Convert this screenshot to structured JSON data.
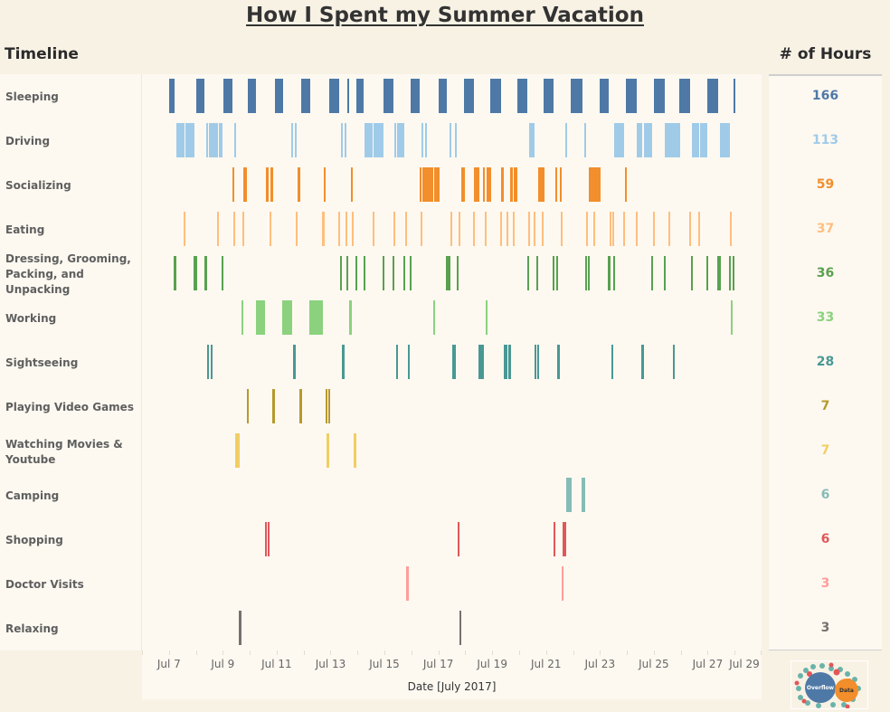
{
  "title": "How I Spent my Summer Vacation",
  "headers": {
    "timeline": "Timeline",
    "hours": "# of Hours"
  },
  "logo": {
    "text_left": "Overflow",
    "text_right": "Data"
  },
  "chart_data": {
    "type": "gantt",
    "title": "How I Spent my Summer Vacation",
    "xlabel": "Date [July 2017]",
    "xlim": [
      "07-06 00:00",
      "07-29 00:00"
    ],
    "x_ticks": [
      "Jul 7",
      "Jul 9",
      "Jul 11",
      "Jul 13",
      "Jul 15",
      "Jul 17",
      "Jul 19",
      "Jul 21",
      "Jul 23",
      "Jul 25",
      "Jul 27",
      "Jul 29"
    ],
    "grid": false,
    "rows": [
      {
        "name": "Sleeping",
        "hours": "166",
        "color": "#4e79a7",
        "bars": [
          [
            "07-07 00:15",
            "07-07 05:00"
          ],
          [
            "07-08 00:15",
            "07-08 07:40"
          ],
          [
            "07-09 00:30",
            "07-09 08:40"
          ],
          [
            "07-09 22:20",
            "07-10 05:30"
          ],
          [
            "07-10 22:20",
            "07-11 05:45"
          ],
          [
            "07-11 21:50",
            "07-12 05:45"
          ],
          [
            "07-12 22:50",
            "07-13 07:40"
          ],
          [
            "07-13 14:55",
            "07-13 16:35"
          ],
          [
            "07-13 23:00",
            "07-14 05:15"
          ],
          [
            "07-14 23:00",
            "07-15 07:55"
          ],
          [
            "07-15 23:15",
            "07-16 07:25"
          ],
          [
            "07-17 00:15",
            "07-17 07:25"
          ],
          [
            "07-17 22:50",
            "07-18 07:40"
          ],
          [
            "07-18 22:05",
            "07-19 07:40"
          ],
          [
            "07-19 22:20",
            "07-20 07:10"
          ],
          [
            "07-20 21:35",
            "07-21 06:30"
          ],
          [
            "07-21 21:50",
            "07-22 08:10"
          ],
          [
            "07-22 23:30",
            "07-23 07:40"
          ],
          [
            "07-23 23:00",
            "07-24 08:40"
          ],
          [
            "07-25 00:00",
            "07-25 09:35"
          ],
          [
            "07-25 22:35",
            "07-26 08:10"
          ],
          [
            "07-26 23:30",
            "07-27 09:05"
          ],
          [
            "07-27 22:50",
            "07-28 00:30"
          ]
        ]
      },
      {
        "name": "Driving",
        "hours": "113",
        "color": "#a0cbe8",
        "bars": [
          [
            "07-07 06:45",
            "07-07 13:55"
          ],
          [
            "07-07 14:40",
            "07-07 22:50"
          ],
          [
            "07-08 09:05",
            "07-08 10:50"
          ],
          [
            "07-08 11:30",
            "07-08 19:40"
          ],
          [
            "07-08 20:25",
            "07-08 23:45"
          ],
          [
            "07-09 10:05",
            "07-09 11:45"
          ],
          [
            "07-11 12:55",
            "07-11 14:40"
          ],
          [
            "07-11 16:05",
            "07-11 17:45"
          ],
          [
            "07-13 09:20",
            "07-13 10:50"
          ],
          [
            "07-13 12:30",
            "07-13 14:10"
          ],
          [
            "07-14 06:15",
            "07-14 13:25"
          ],
          [
            "07-14 14:10",
            "07-14 23:00"
          ],
          [
            "07-15 08:55",
            "07-15 10:20"
          ],
          [
            "07-15 11:15",
            "07-15 17:30"
          ],
          [
            "07-16 08:55",
            "07-16 10:35"
          ],
          [
            "07-16 12:15",
            "07-16 13:40"
          ],
          [
            "07-17 09:50",
            "07-17 11:30"
          ],
          [
            "07-17 14:40",
            "07-17 16:20"
          ],
          [
            "07-20 08:40",
            "07-20 13:25"
          ],
          [
            "07-21 17:00",
            "07-21 18:30"
          ],
          [
            "07-22 09:50",
            "07-22 11:30"
          ],
          [
            "07-23 12:30",
            "07-23 21:20"
          ],
          [
            "07-24 08:40",
            "07-24 13:25"
          ],
          [
            "07-24 15:05",
            "07-24 22:20"
          ],
          [
            "07-25 09:35",
            "07-25 23:15"
          ],
          [
            "07-26 09:50",
            "07-26 16:05"
          ],
          [
            "07-26 17:00",
            "07-26 23:30"
          ],
          [
            "07-27 10:50",
            "07-27 19:40"
          ]
        ]
      },
      {
        "name": "Socializing",
        "hours": "59",
        "color": "#f28e2b",
        "bars": [
          [
            "07-09 08:40",
            "07-09 10:05"
          ],
          [
            "07-09 18:15",
            "07-09 21:20"
          ],
          [
            "07-10 14:25",
            "07-10 16:50"
          ],
          [
            "07-10 18:30",
            "07-10 20:55"
          ],
          [
            "07-11 18:30",
            "07-11 20:55"
          ],
          [
            "07-12 18:00",
            "07-12 19:25"
          ],
          [
            "07-13 18:00",
            "07-13 19:40"
          ],
          [
            "07-16 07:25",
            "07-16 08:55"
          ],
          [
            "07-16 09:50",
            "07-16 19:25"
          ],
          [
            "07-16 20:10",
            "07-17 00:55"
          ],
          [
            "07-17 20:25",
            "07-17 23:30"
          ],
          [
            "07-18 07:25",
            "07-18 12:30"
          ],
          [
            "07-18 15:35",
            "07-18 17:15"
          ],
          [
            "07-18 18:55",
            "07-18 22:50"
          ],
          [
            "07-19 07:40",
            "07-19 10:05"
          ],
          [
            "07-19 15:50",
            "07-19 18:15"
          ],
          [
            "07-19 18:55",
            "07-19 22:20"
          ],
          [
            "07-20 16:50",
            "07-20 22:20"
          ],
          [
            "07-21 08:10",
            "07-21 09:35"
          ],
          [
            "07-21 12:00",
            "07-21 13:40"
          ],
          [
            "07-22 13:55",
            "07-23 00:30"
          ],
          [
            "07-23 22:05",
            "07-23 23:45"
          ]
        ]
      },
      {
        "name": "Eating",
        "hours": "37",
        "color": "#ffbe7d",
        "bars": [
          [
            "07-07 12:55",
            "07-07 14:40"
          ],
          [
            "07-08 18:55",
            "07-08 20:25"
          ],
          [
            "07-09 09:20",
            "07-09 11:00"
          ],
          [
            "07-09 17:30",
            "07-09 18:55"
          ],
          [
            "07-10 17:30",
            "07-10 19:10"
          ],
          [
            "07-11 17:00",
            "07-11 18:30"
          ],
          [
            "07-12 16:20",
            "07-12 18:45"
          ],
          [
            "07-13 06:45",
            "07-13 08:25"
          ],
          [
            "07-13 13:10",
            "07-13 14:55"
          ],
          [
            "07-13 18:55",
            "07-13 20:40"
          ],
          [
            "07-14 13:25",
            "07-14 15:05"
          ],
          [
            "07-15 07:55",
            "07-15 09:35"
          ],
          [
            "07-15 18:30",
            "07-15 20:10"
          ],
          [
            "07-16 08:10",
            "07-16 09:50"
          ],
          [
            "07-17 10:35",
            "07-17 12:15"
          ],
          [
            "07-17 17:45",
            "07-17 19:25"
          ],
          [
            "07-18 06:45",
            "07-18 08:25"
          ],
          [
            "07-18 17:15",
            "07-18 18:55"
          ],
          [
            "07-19 06:55",
            "07-19 08:40"
          ],
          [
            "07-19 12:30",
            "07-19 14:10"
          ],
          [
            "07-19 18:15",
            "07-19 19:55"
          ],
          [
            "07-20 07:55",
            "07-20 09:35"
          ],
          [
            "07-20 12:45",
            "07-20 14:25"
          ],
          [
            "07-20 19:55",
            "07-20 21:35"
          ],
          [
            "07-21 12:55",
            "07-21 14:40"
          ],
          [
            "07-22 11:30",
            "07-22 13:10"
          ],
          [
            "07-22 18:00",
            "07-22 19:25"
          ],
          [
            "07-23 08:25",
            "07-23 10:05"
          ],
          [
            "07-23 10:50",
            "07-23 12:30"
          ],
          [
            "07-23 20:25",
            "07-23 22:05"
          ],
          [
            "07-24 07:55",
            "07-24 09:20"
          ],
          [
            "07-24 23:00",
            "07-25 00:45"
          ],
          [
            "07-25 12:45",
            "07-25 14:25"
          ],
          [
            "07-26 07:25",
            "07-26 08:55"
          ],
          [
            "07-26 15:20",
            "07-26 17:00"
          ],
          [
            "07-27 19:40",
            "07-27 21:05"
          ]
        ]
      },
      {
        "name": "Dressing, Grooming, Packing, and Unpacking",
        "hours": "36",
        "color": "#59a14f",
        "bars": [
          [
            "07-07 04:05",
            "07-07 06:45"
          ],
          [
            "07-07 21:50",
            "07-08 01:10"
          ],
          [
            "07-08 07:40",
            "07-08 10:05"
          ],
          [
            "07-08 22:50",
            "07-09 00:30"
          ],
          [
            "07-13 08:25",
            "07-13 10:05"
          ],
          [
            "07-13 14:10",
            "07-13 15:35"
          ],
          [
            "07-13 22:05",
            "07-13 23:45"
          ],
          [
            "07-14 05:15",
            "07-14 06:55"
          ],
          [
            "07-14 22:20",
            "07-14 23:45"
          ],
          [
            "07-15 07:10",
            "07-15 08:55"
          ],
          [
            "07-15 16:50",
            "07-15 18:30"
          ],
          [
            "07-15 22:35",
            "07-16 00:00"
          ],
          [
            "07-17 06:45",
            "07-17 10:50"
          ],
          [
            "07-17 16:20",
            "07-17 17:45"
          ],
          [
            "07-20 07:10",
            "07-20 08:40"
          ],
          [
            "07-20 15:05",
            "07-20 16:50"
          ],
          [
            "07-21 05:45",
            "07-21 07:10"
          ],
          [
            "07-21 08:55",
            "07-21 10:35"
          ],
          [
            "07-22 10:35",
            "07-22 12:15"
          ],
          [
            "07-22 13:10",
            "07-22 14:40"
          ],
          [
            "07-23 06:45",
            "07-23 09:05"
          ],
          [
            "07-23 11:30",
            "07-23 13:10"
          ],
          [
            "07-24 21:20",
            "07-24 23:00"
          ],
          [
            "07-25 08:40",
            "07-25 10:20"
          ],
          [
            "07-26 08:55",
            "07-26 10:35"
          ],
          [
            "07-26 22:35",
            "07-27 00:15"
          ],
          [
            "07-27 08:25",
            "07-27 11:30"
          ],
          [
            "07-27 18:45",
            "07-27 20:25"
          ],
          [
            "07-27 22:05",
            "07-27 23:30"
          ]
        ]
      },
      {
        "name": "Working",
        "hours": "33",
        "color": "#8cd17d",
        "bars": [
          [
            "07-09 16:35",
            "07-09 18:15"
          ],
          [
            "07-10 05:30",
            "07-10 13:40"
          ],
          [
            "07-11 04:50",
            "07-11 13:40"
          ],
          [
            "07-12 05:00",
            "07-12 17:00"
          ],
          [
            "07-13 16:35",
            "07-13 18:55"
          ],
          [
            "07-16 19:25",
            "07-16 21:05"
          ],
          [
            "07-18 18:00",
            "07-18 19:40"
          ],
          [
            "07-27 20:25",
            "07-27 22:05"
          ]
        ]
      },
      {
        "name": "Sightseeing",
        "hours": "28",
        "color": "#499894",
        "bars": [
          [
            "07-08 10:05",
            "07-08 11:30"
          ],
          [
            "07-08 13:10",
            "07-08 14:55"
          ],
          [
            "07-11 14:40",
            "07-11 17:00"
          ],
          [
            "07-13 10:05",
            "07-13 12:30"
          ],
          [
            "07-15 10:20",
            "07-15 12:00"
          ],
          [
            "07-15 20:55",
            "07-15 22:35"
          ],
          [
            "07-17 12:15",
            "07-17 15:20"
          ],
          [
            "07-18 11:30",
            "07-18 16:20"
          ],
          [
            "07-19 10:05",
            "07-19 13:25"
          ],
          [
            "07-19 14:10",
            "07-19 16:35"
          ],
          [
            "07-20 13:25",
            "07-20 15:05"
          ],
          [
            "07-20 15:50",
            "07-20 17:30"
          ],
          [
            "07-21 09:35",
            "07-21 12:00"
          ],
          [
            "07-23 10:05",
            "07-23 11:30"
          ],
          [
            "07-24 12:45",
            "07-24 15:05"
          ],
          [
            "07-25 16:50",
            "07-25 18:30"
          ]
        ]
      },
      {
        "name": "Playing Video Games",
        "hours": "7",
        "color": "#b6992d",
        "bars": [
          [
            "07-09 21:20",
            "07-09 23:00"
          ],
          [
            "07-10 19:55",
            "07-10 22:20"
          ],
          [
            "07-11 20:10",
            "07-11 22:35"
          ],
          [
            "07-12 19:25",
            "07-12 21:05"
          ],
          [
            "07-12 22:05",
            "07-12 23:30"
          ]
        ]
      },
      {
        "name": "Watching Movies & Youtube",
        "hours": "7",
        "color": "#f1ce63",
        "bars": [
          [
            "07-09 11:00",
            "07-09 15:05"
          ],
          [
            "07-12 20:25",
            "07-12 22:50"
          ],
          [
            "07-13 20:40",
            "07-13 23:00"
          ]
        ]
      },
      {
        "name": "Camping",
        "hours": "6",
        "color": "#86bcb6",
        "bars": [
          [
            "07-21 17:45",
            "07-21 22:35"
          ],
          [
            "07-22 07:25",
            "07-22 10:35"
          ]
        ]
      },
      {
        "name": "Shopping",
        "hours": "6",
        "color": "#e15759",
        "bars": [
          [
            "07-10 13:40",
            "07-10 15:05"
          ],
          [
            "07-10 16:05",
            "07-10 17:30"
          ],
          [
            "07-17 17:00",
            "07-17 18:45"
          ],
          [
            "07-21 06:30",
            "07-21 08:10"
          ],
          [
            "07-21 14:40",
            "07-21 17:45"
          ]
        ]
      },
      {
        "name": "Doctor Visits",
        "hours": "3",
        "color": "#ff9d9a",
        "bars": [
          [
            "07-15 19:10",
            "07-15 21:35"
          ],
          [
            "07-21 13:40",
            "07-21 15:20"
          ]
        ]
      },
      {
        "name": "Relaxing",
        "hours": "3",
        "color": "#79706e",
        "bars": [
          [
            "07-09 14:10",
            "07-09 16:35"
          ],
          [
            "07-17 18:45",
            "07-17 20:25"
          ]
        ]
      }
    ]
  }
}
